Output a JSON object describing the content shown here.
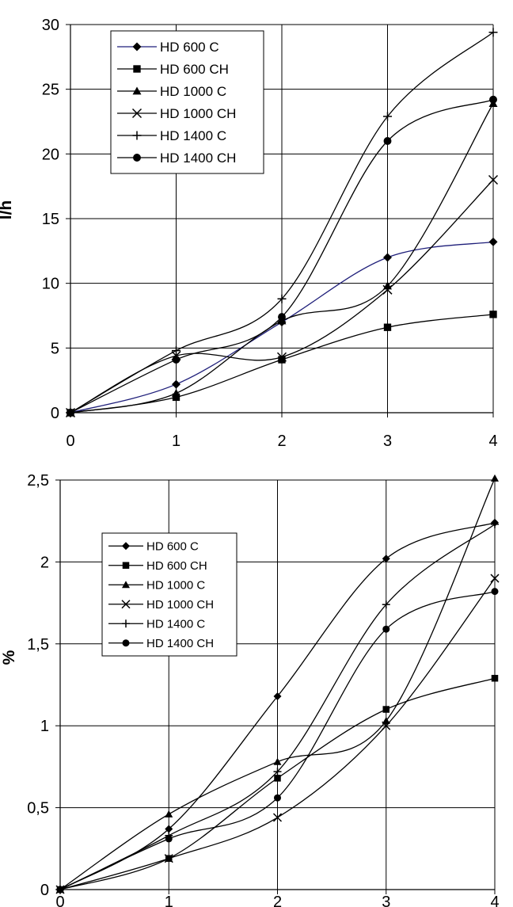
{
  "chart_data": [
    {
      "type": "line",
      "ylabel": "l/h",
      "xlabel": "",
      "x": [
        0,
        1,
        2,
        3,
        4
      ],
      "xlim": [
        0,
        4
      ],
      "ylim": [
        0,
        30
      ],
      "xticks": [
        "0",
        "1",
        "2",
        "3",
        "4"
      ],
      "yticks": [
        "0",
        "5",
        "10",
        "15",
        "20",
        "25",
        "30"
      ],
      "grid": true,
      "legend_position": "top-left",
      "series": [
        {
          "name": "HD 600 C",
          "marker": "diamond",
          "color": "#1f1f7a",
          "values": [
            0,
            2.2,
            7.0,
            12.0,
            13.2
          ]
        },
        {
          "name": "HD 600 CH",
          "marker": "square",
          "color": "#000000",
          "values": [
            0,
            1.2,
            4.1,
            6.6,
            7.6
          ]
        },
        {
          "name": "HD 1000 C",
          "marker": "triangle",
          "color": "#000000",
          "values": [
            0,
            1.5,
            7.1,
            9.8,
            23.9
          ]
        },
        {
          "name": "HD 1000 CH",
          "marker": "x",
          "color": "#000000",
          "values": [
            0,
            4.4,
            4.3,
            9.5,
            18.0
          ]
        },
        {
          "name": "HD 1400 C",
          "marker": "plus",
          "color": "#000000",
          "values": [
            0,
            4.8,
            8.8,
            22.9,
            29.4
          ]
        },
        {
          "name": "HD 1400 CH",
          "marker": "circle",
          "color": "#000000",
          "values": [
            0,
            4.1,
            7.4,
            21.0,
            24.2
          ]
        }
      ]
    },
    {
      "type": "line",
      "ylabel": "%",
      "xlabel": "",
      "x": [
        0,
        1,
        2,
        3,
        4
      ],
      "xlim": [
        0,
        4
      ],
      "ylim": [
        0,
        2.5
      ],
      "xticks": [
        "0",
        "1",
        "2",
        "3",
        "4"
      ],
      "yticks": [
        "0",
        "0,5",
        "1",
        "1,5",
        "2",
        "2,5"
      ],
      "grid": true,
      "legend_position": "left",
      "series": [
        {
          "name": "HD 600 C",
          "marker": "diamond",
          "color": "#000000",
          "values": [
            0,
            0.37,
            1.18,
            2.02,
            2.24
          ]
        },
        {
          "name": "HD 600 CH",
          "marker": "square",
          "color": "#000000",
          "values": [
            0,
            0.19,
            0.68,
            1.1,
            1.29
          ]
        },
        {
          "name": "HD 1000 C",
          "marker": "triangle",
          "color": "#000000",
          "values": [
            0,
            0.46,
            0.78,
            1.03,
            2.51
          ]
        },
        {
          "name": "HD 1000 CH",
          "marker": "x",
          "color": "#000000",
          "values": [
            0,
            0.19,
            0.44,
            1.0,
            1.9
          ]
        },
        {
          "name": "HD 1400 C",
          "marker": "plus",
          "color": "#000000",
          "values": [
            0,
            0.33,
            0.72,
            1.74,
            2.23
          ]
        },
        {
          "name": "HD 1400 CH",
          "marker": "circle",
          "color": "#000000",
          "values": [
            0,
            0.31,
            0.56,
            1.59,
            1.82
          ]
        }
      ]
    }
  ]
}
